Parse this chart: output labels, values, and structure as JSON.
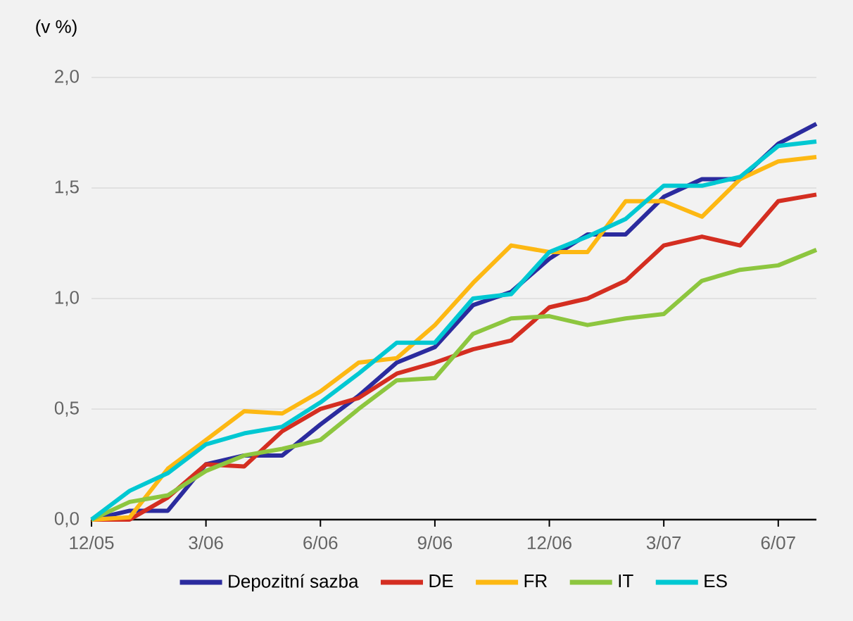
{
  "chart_data": {
    "type": "line",
    "ylabel": "(v %)",
    "x": [
      "2005-12",
      "2006-01",
      "2006-02",
      "2006-03",
      "2006-04",
      "2006-05",
      "2006-06",
      "2006-07",
      "2006-08",
      "2006-09",
      "2006-10",
      "2006-11",
      "2006-12",
      "2007-01",
      "2007-02",
      "2007-03",
      "2007-04",
      "2007-05",
      "2007-06",
      "2007-07"
    ],
    "series": [
      {
        "name": "Depozitní sazba",
        "color": "#2b2b9e",
        "values": [
          0,
          0.04,
          0.04,
          0.25,
          0.29,
          0.29,
          0.43,
          0.56,
          0.71,
          0.78,
          0.97,
          1.03,
          1.18,
          1.29,
          1.29,
          1.46,
          1.54,
          1.54,
          1.7,
          1.79
        ]
      },
      {
        "name": "DE",
        "color": "#d42e21",
        "values": [
          0,
          0.0,
          0.1,
          0.25,
          0.24,
          0.4,
          0.5,
          0.55,
          0.66,
          0.71,
          0.77,
          0.81,
          0.96,
          1.0,
          1.08,
          1.24,
          1.28,
          1.24,
          1.44,
          1.47
        ]
      },
      {
        "name": "FR",
        "color": "#fdb813",
        "values": [
          0,
          0.01,
          0.23,
          0.36,
          0.49,
          0.48,
          0.58,
          0.71,
          0.73,
          0.88,
          1.07,
          1.24,
          1.21,
          1.21,
          1.44,
          1.44,
          1.37,
          1.54,
          1.62,
          1.64
        ]
      },
      {
        "name": "IT",
        "color": "#8dc63f",
        "values": [
          0,
          0.08,
          0.11,
          0.22,
          0.29,
          0.32,
          0.36,
          0.5,
          0.63,
          0.64,
          0.84,
          0.91,
          0.92,
          0.88,
          0.91,
          0.93,
          1.08,
          1.13,
          1.15,
          1.22
        ]
      },
      {
        "name": "ES",
        "color": "#00c8d2",
        "values": [
          0,
          0.13,
          0.21,
          0.34,
          0.39,
          0.42,
          0.53,
          0.66,
          0.8,
          0.8,
          1.0,
          1.02,
          1.21,
          1.28,
          1.36,
          1.51,
          1.51,
          1.55,
          1.69,
          1.71
        ]
      }
    ],
    "xlim": [
      "2005-12",
      "2007-07"
    ],
    "xticks": [
      {
        "value": "2005-12",
        "label": "12/05"
      },
      {
        "value": "2006-03",
        "label": "3/06"
      },
      {
        "value": "2006-06",
        "label": "6/06"
      },
      {
        "value": "2006-09",
        "label": "9/06"
      },
      {
        "value": "2006-12",
        "label": "12/06"
      },
      {
        "value": "2007-03",
        "label": "3/07"
      },
      {
        "value": "2007-06",
        "label": "6/07"
      }
    ],
    "ylim": [
      0,
      2
    ],
    "yticks": [
      {
        "value": 0,
        "label": "0,0"
      },
      {
        "value": 0.5,
        "label": "0,5"
      },
      {
        "value": 1,
        "label": "1,0"
      },
      {
        "value": 1.5,
        "label": "1,5"
      },
      {
        "value": 2,
        "label": "2,0"
      }
    ],
    "grid": "y",
    "legend": "bottom",
    "marker": "none",
    "line_style": "solid"
  }
}
